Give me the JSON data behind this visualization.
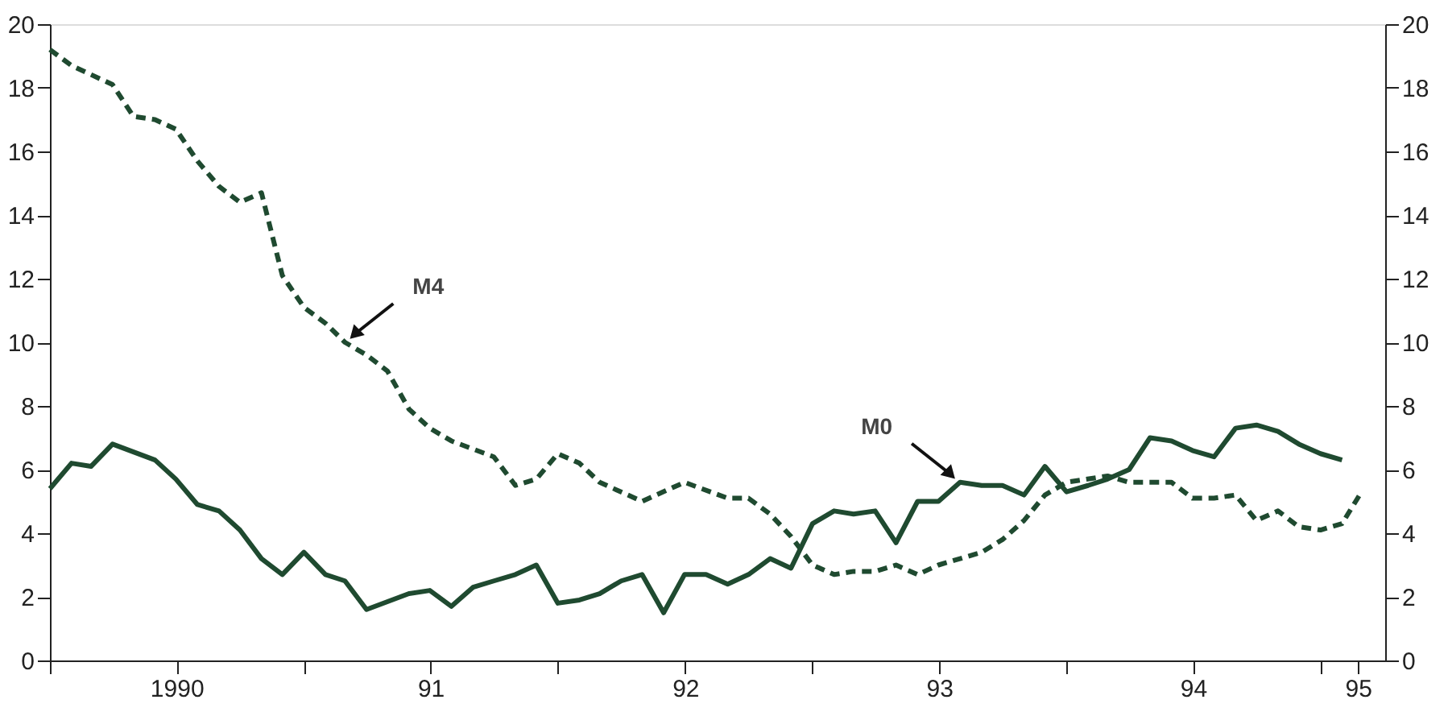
{
  "chart_data": {
    "type": "line",
    "xlim": [
      "1990-01-01",
      "1995-04-04"
    ],
    "xticks": [
      {
        "value": "1990-01-01",
        "label": null
      },
      {
        "value": "1990-07-02",
        "label": "1990"
      },
      {
        "value": "1991-01-01",
        "label": null
      },
      {
        "value": "1991-07-02",
        "label": "91"
      },
      {
        "value": "1992-01-01",
        "label": null
      },
      {
        "value": "1992-07-02",
        "label": "92"
      },
      {
        "value": "1993-01-01",
        "label": null
      },
      {
        "value": "1993-07-02",
        "label": "93"
      },
      {
        "value": "1994-01-01",
        "label": null
      },
      {
        "value": "1994-07-02",
        "label": "94"
      },
      {
        "value": "1995-01-01",
        "label": null
      },
      {
        "value": "1995-02-24",
        "label": "95"
      }
    ],
    "ylim": [
      0,
      20
    ],
    "yticks": [
      0,
      2,
      4,
      6,
      8,
      10,
      12,
      14,
      16,
      18,
      20
    ],
    "y2lim": [
      0,
      20
    ],
    "y2ticks": [
      0,
      2,
      4,
      6,
      8,
      10,
      12,
      14,
      16,
      18,
      20
    ],
    "grid": false,
    "marker": "none",
    "series": [
      {
        "color": "#1f4a30",
        "line_style": "solid",
        "x": [
          "1990-01",
          "1990-02",
          "1990-03",
          "1990-04",
          "1990-06",
          "1990-07",
          "1990-08",
          "1990-09",
          "1990-10",
          "1990-11",
          "1990-12",
          "1991-01",
          "1991-02",
          "1991-03",
          "1991-04",
          "1991-06",
          "1991-07",
          "1991-08",
          "1991-09",
          "1991-10",
          "1991-11",
          "1991-12",
          "1992-01",
          "1992-02",
          "1992-03",
          "1992-04",
          "1992-05",
          "1992-06",
          "1992-07",
          "1992-08",
          "1992-09",
          "1992-10",
          "1992-11",
          "1992-12",
          "1993-01",
          "1993-02",
          "1993-03",
          "1993-04",
          "1993-05",
          "1993-06",
          "1993-07",
          "1993-08",
          "1993-09",
          "1993-10",
          "1993-11",
          "1993-12",
          "1994-01",
          "1994-02",
          "1994-03",
          "1994-04",
          "1994-05",
          "1994-06",
          "1994-07",
          "1994-08",
          "1994-09",
          "1994-10",
          "1994-11",
          "1994-12",
          "1995-01",
          "1995-02"
        ],
        "values": [
          5.4,
          6.2,
          6.1,
          6.8,
          6.3,
          5.7,
          4.9,
          4.7,
          4.1,
          3.2,
          2.7,
          3.4,
          2.7,
          2.5,
          1.6,
          2.1,
          2.2,
          1.7,
          2.3,
          2.5,
          2.7,
          3.0,
          1.8,
          1.9,
          2.1,
          2.5,
          2.7,
          1.5,
          2.7,
          2.7,
          2.4,
          2.7,
          3.2,
          2.9,
          4.3,
          4.7,
          4.6,
          4.7,
          3.7,
          5.0,
          5.0,
          5.6,
          5.5,
          5.5,
          5.2,
          6.1,
          5.3,
          5.5,
          5.7,
          6.0,
          7.0,
          6.9,
          6.6,
          6.4,
          7.3,
          7.4,
          7.2,
          6.8,
          6.5,
          6.3
        ]
      },
      {
        "color": "#1f4a30",
        "line_style": "dashed",
        "x": [
          "1990-01",
          "1990-02",
          "1990-04",
          "1990-05",
          "1990-06",
          "1990-07",
          "1990-08",
          "1990-09",
          "1990-10",
          "1990-11",
          "1990-12",
          "1991-01",
          "1991-02",
          "1991-03",
          "1991-04",
          "1991-05",
          "1991-06",
          "1991-07",
          "1991-08",
          "1991-10",
          "1991-11",
          "1991-12",
          "1992-01",
          "1992-02",
          "1992-03",
          "1992-05",
          "1992-07",
          "1992-09",
          "1992-10",
          "1992-11",
          "1992-12",
          "1993-01",
          "1993-02",
          "1993-03",
          "1993-04",
          "1993-05",
          "1993-06",
          "1993-07",
          "1993-09",
          "1993-10",
          "1993-11",
          "1993-12",
          "1994-01",
          "1994-03",
          "1994-04",
          "1994-06",
          "1994-07",
          "1994-08",
          "1994-09",
          "1994-10",
          "1994-11",
          "1994-12",
          "1995-01",
          "1995-02",
          "1995-03"
        ],
        "values": [
          19.2,
          18.7,
          18.1,
          17.1,
          17.0,
          16.7,
          15.7,
          14.9,
          14.4,
          14.7,
          12.1,
          11.1,
          10.6,
          10.0,
          9.6,
          9.1,
          7.9,
          7.3,
          6.9,
          6.4,
          5.5,
          5.7,
          6.5,
          6.2,
          5.6,
          5.0,
          5.6,
          5.1,
          5.1,
          4.6,
          3.9,
          3.0,
          2.7,
          2.8,
          2.8,
          3.0,
          2.7,
          3.0,
          3.4,
          3.8,
          4.4,
          5.2,
          5.6,
          5.8,
          5.6,
          5.6,
          5.1,
          5.1,
          5.2,
          4.4,
          4.7,
          4.2,
          4.1,
          4.3,
          5.3
        ]
      }
    ],
    "annotations": [
      {
        "text": "M4",
        "x": "1991-03",
        "y": 10.0
      },
      {
        "text": "M0",
        "x": "1993-08",
        "y": 5.6
      }
    ]
  }
}
